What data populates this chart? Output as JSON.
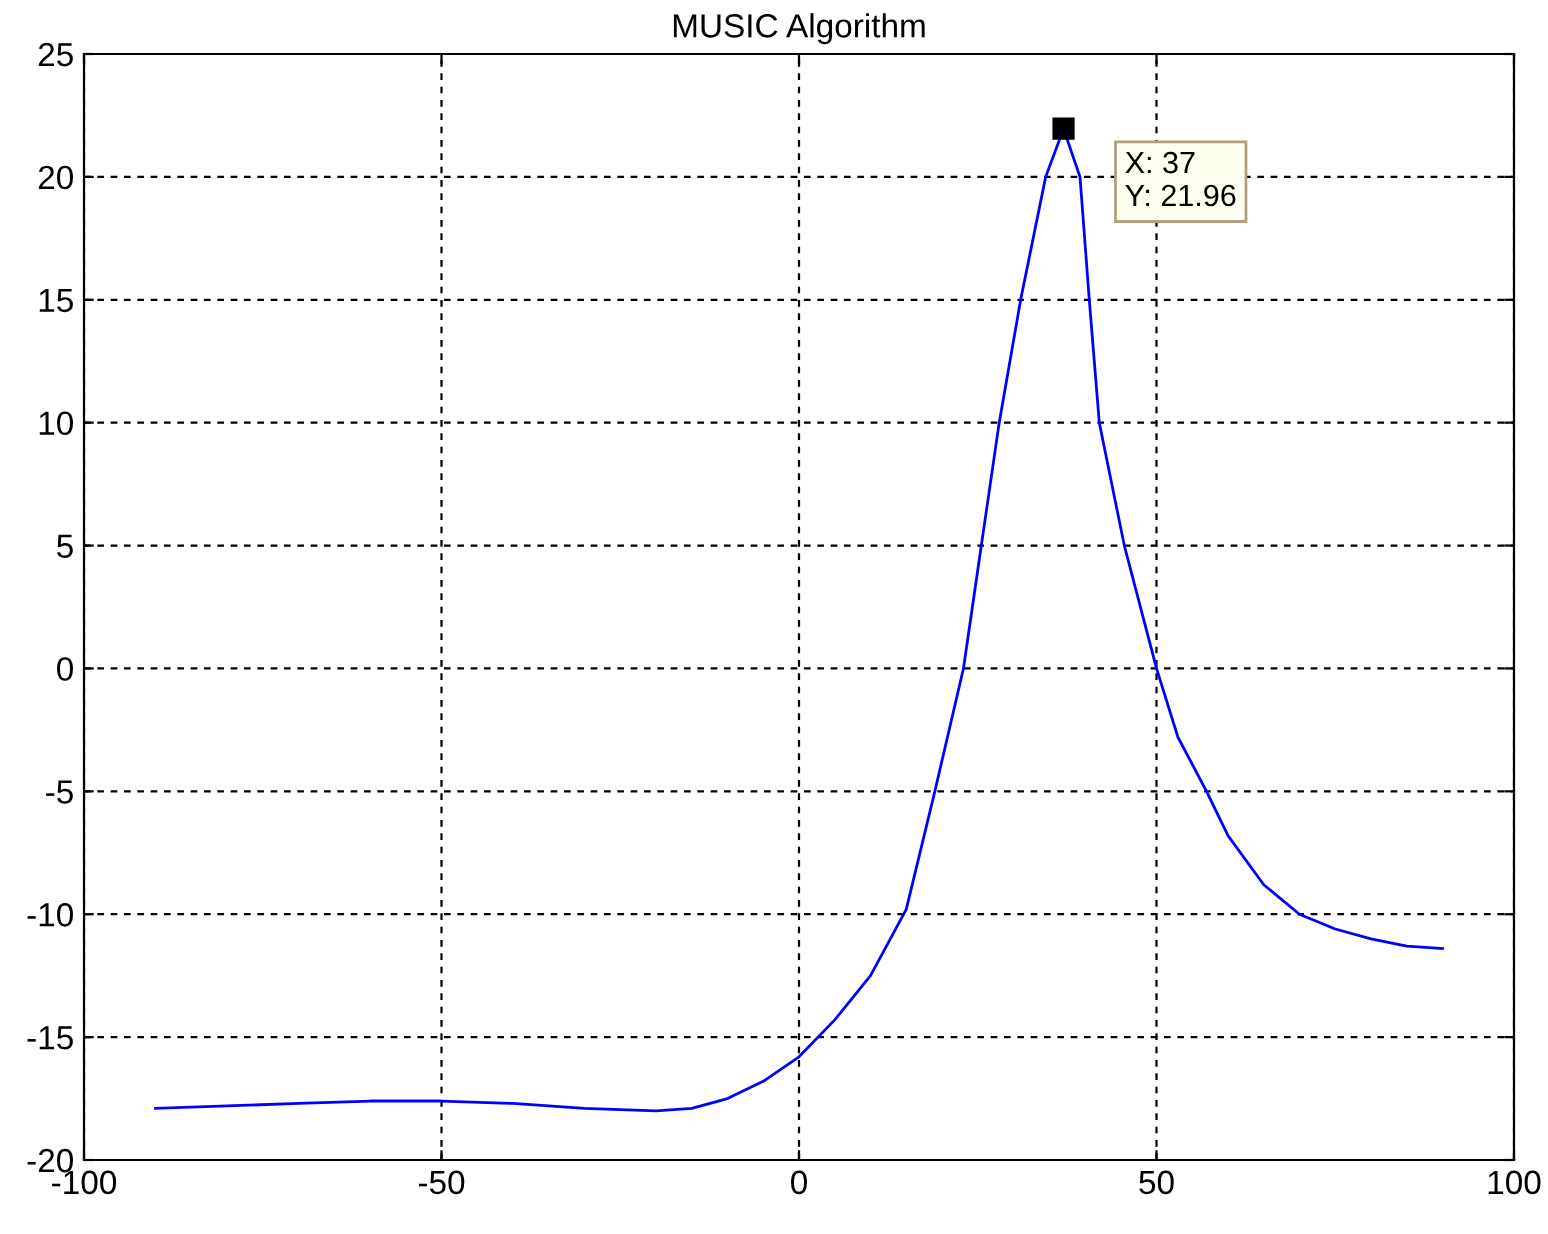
{
  "chart_data": {
    "type": "line",
    "title": "MUSIC Algorithm",
    "series": [
      {
        "color": "#0000ff",
        "x": [
          -90,
          -80,
          -70,
          -60,
          -50,
          -40,
          -30,
          -20,
          -15,
          -10,
          -5,
          0,
          5,
          10,
          15,
          19,
          23,
          25.5,
          28,
          31,
          34.5,
          37,
          39.3,
          40.6,
          42,
          45.5,
          50,
          53,
          57,
          60,
          65,
          70,
          75,
          80,
          85,
          90
        ],
        "values": [
          -17.9,
          -17.8,
          -17.7,
          -17.6,
          -17.6,
          -17.7,
          -17.9,
          -18.0,
          -17.9,
          -17.5,
          -16.8,
          -15.8,
          -14.3,
          -12.5,
          -9.8,
          -5,
          0,
          5,
          10,
          15,
          20,
          21.96,
          20,
          15,
          10,
          5,
          0,
          -2.8,
          -5,
          -6.8,
          -8.8,
          -10,
          -10.6,
          -11.0,
          -11.3,
          -11.4
        ]
      }
    ],
    "xlim": [
      -100,
      100
    ],
    "xticks": [
      -100,
      -50,
      0,
      50,
      100
    ],
    "ylim": [
      -20,
      25
    ],
    "yticks": [
      -20,
      -15,
      -10,
      -5,
      0,
      5,
      10,
      15,
      20,
      25
    ],
    "grid": true,
    "line_style": "solid",
    "marker": "none",
    "legend": false,
    "annotations": [
      {
        "text": "X: 37\nY: 21.96",
        "x": 37,
        "y": 21.96
      }
    ]
  }
}
